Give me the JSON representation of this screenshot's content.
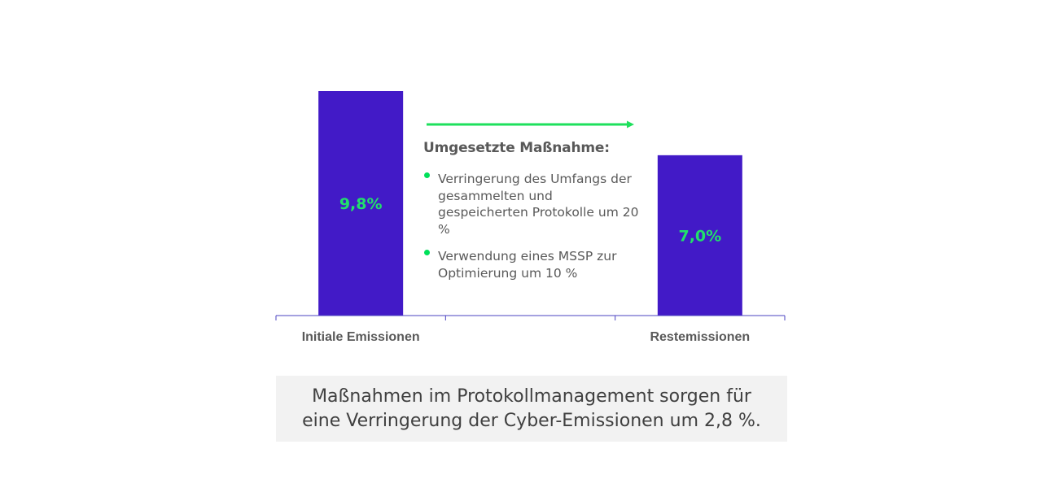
{
  "chart_data": {
    "type": "bar",
    "categories": [
      "Initiale Emissionen",
      "",
      "Restemissionen"
    ],
    "values": [
      9.8,
      null,
      7.0
    ],
    "data_labels": [
      "9,8%",
      "",
      "7,0%"
    ],
    "ylim": [
      0,
      9.8
    ],
    "grid": false,
    "colors": {
      "bar": "#421ac7",
      "data_label": "#21e06b",
      "arrow": "#1ee05c",
      "axis": "#4b43c2"
    }
  },
  "annotation": {
    "heading": "Umgesetzte Maßnahme:",
    "bullets": [
      "Verringerung des Umfangs der gesammelten und gespeicherten Protokolle um 20 %",
      "Verwendung eines MSSP zur Optimierung um 10 %"
    ]
  },
  "summary": {
    "line1": "Maßnahmen im Protokollmanagement sorgen für",
    "line2": "eine Verringerung der Cyber-Emissionen um 2,8 %."
  }
}
